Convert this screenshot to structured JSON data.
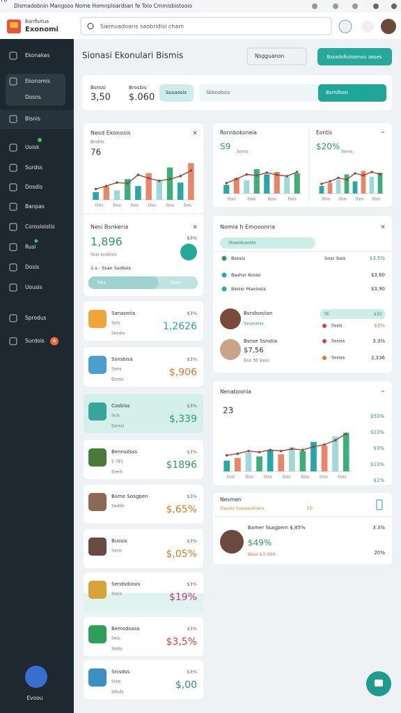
{
  "window_title": "Dismadobnin Mangsoo Nome Homnploardsan fe Tolo Cmmisbistooio",
  "header": {
    "logo_top": "Eonfisitus",
    "logo_bottom": "Exonomi",
    "search": "Siemuadoaris saobridisi cham"
  },
  "sidebar": {
    "items": [
      "Ekonakes",
      "Ekonomis",
      "Dosns",
      "Bisnis",
      "Uoisk",
      "Surdss",
      "Dosdis",
      "Banpas",
      "Corosioistis",
      "Rusi",
      "Dosis",
      "Uousis",
      "Sprodus",
      "Surdois"
    ],
    "badge": "6",
    "footer": "Evoou"
  },
  "page": {
    "title": "Sionasi Ekonulari Bismis",
    "dropdown": "Nsgguanon",
    "button": "Bsssdsfiutoonou asses"
  },
  "filters": {
    "stat1_label": "Bsnssi",
    "stat1_value": "3,50",
    "stat2_label": "Brosbis",
    "stat2_value": "$.060",
    "pill": "Susaosis",
    "input": "Sbkosbsis",
    "select": "Bsmiltosi"
  },
  "bar_colors": [
    "#2aa6a6",
    "#e8866a",
    "#9fd9d6",
    "#3fae7a"
  ],
  "line_color": "#8b4a3c",
  "charts": [
    {
      "title": "Nesd Ekonosis",
      "value": "76",
      "sub": "Bosbis",
      "labels": [
        "Dsis",
        "Dsis",
        "Dsis",
        "Dsis",
        "Dsis",
        "Dsis"
      ],
      "ylim": [
        0,
        100
      ],
      "bars": [
        18,
        30,
        22,
        48,
        32,
        62,
        45,
        75,
        40,
        85
      ],
      "line": [
        25,
        32,
        40,
        38,
        58,
        50,
        44,
        48,
        55,
        68
      ]
    },
    {
      "title": "Ronnbokoneia",
      "value": "S9",
      "sub": "Sonis",
      "labels": [
        "Dsis",
        "Dsis",
        "Dsis",
        "Dsis"
      ],
      "ylim": [
        0,
        100
      ],
      "bars": [
        25,
        45,
        38,
        70,
        55,
        62,
        48,
        58
      ],
      "line": [
        30,
        42,
        55,
        52,
        60,
        54,
        50,
        62
      ]
    },
    {
      "title": "Eontis",
      "value": "$20%",
      "sub": "Sonis",
      "labels": [
        "Dsis",
        "Dsis",
        "Dsis",
        "Dsis"
      ],
      "ylim": [
        0,
        100
      ],
      "bars": [
        22,
        30,
        40,
        55,
        35,
        65,
        48,
        60
      ],
      "line": [
        28,
        35,
        45,
        40,
        58,
        52,
        62,
        55
      ]
    },
    {
      "title": "Nenaboonia",
      "value": "23",
      "sub": null,
      "labels": [
        "Dsis",
        "Dsis",
        "Dsis",
        "Dsis",
        "Dsis",
        "Dsis",
        "Dsis"
      ],
      "ylim": [
        0,
        100
      ],
      "bars": [
        20,
        25,
        35,
        28,
        40,
        32,
        45,
        38,
        55,
        48,
        65,
        72
      ],
      "line": [
        30,
        33,
        38,
        36,
        40,
        38,
        42,
        40,
        46,
        50,
        58,
        70
      ],
      "axis_labels": [
        "$53%",
        "$13%",
        "$3%",
        "$13%",
        "$1%"
      ]
    }
  ],
  "summary": {
    "title": "Nesi Bsnkeria",
    "value": "1,896",
    "pct": "$3%",
    "sub": "Sosi sosbisis",
    "note": "1-s · Ssan Ssobsis",
    "bar_left": "Ssis",
    "bar_right": "Sasis"
  },
  "items": [
    {
      "name": "Sanaooiia",
      "sub1": "Sois",
      "sub2": "Sesdis",
      "pct": "$3%",
      "value": "1,2626"
    },
    {
      "name": "Ssnsbisa",
      "sub1": "Sans",
      "sub2": "Basss",
      "pct": "$3%",
      "value": "$,906"
    },
    {
      "name": "Cosbiss",
      "sub1": "Scis",
      "sub2": "Ssosis",
      "pct": "$3%",
      "value": "$,339"
    },
    {
      "name": "Bennsdsss",
      "sub1": "S 781",
      "sub2": "Baeis",
      "pct": "$3%",
      "value": "$1896"
    },
    {
      "name": "Bame Sosgpen",
      "sub1": "Soddo",
      "sub2": "",
      "pct": "$3%",
      "value": "$,65%"
    },
    {
      "name": "Buosis",
      "sub1": "Sasis",
      "sub2": "",
      "pct": "$3%",
      "value": "$,05%"
    },
    {
      "name": "Sendsdiosis",
      "sub1": "Sssis",
      "sub2": "",
      "pct": "$3%",
      "value": "$19%"
    },
    {
      "name": "Bemodsasa",
      "sub1": "Sels",
      "sub2": "Ssdis",
      "pct": "$3%",
      "value": "$3,5%"
    },
    {
      "name": "Snisdss",
      "sub1": "Sisis",
      "sub2": "Sdsds",
      "pct": "$3%",
      "value": "$,00"
    }
  ],
  "news": {
    "title": "Nomia h Emooonria",
    "pill": "Sloaodusosts",
    "rows": [
      {
        "label": "Bsosis",
        "mid": "Sosc bais",
        "value": "$3.5%"
      },
      {
        "label": "Bashsr Kosisi",
        "value": "$3,60"
      },
      {
        "label": "Bsoisr Maniosis",
        "value": "$3,90"
      }
    ],
    "people": [
      {
        "name": "Bsndsosiian",
        "sub": "Sssasaiss",
        "pill_left": "Sli",
        "pill_right": "$35",
        "row_label": "Sosis",
        "row_value": "$3%"
      },
      {
        "name": "Bsnse Ssnstia",
        "value": "$7,56",
        "sub": "Bsa 30 $sas",
        "row1_label": "Sosisa",
        "row1_value": "3.3%",
        "row2_label": "Sosisa",
        "row2_value": "2,336"
      }
    ]
  },
  "bottom": {
    "title": "Nesmen",
    "sub": "Dsasis Soeasotiosis",
    "count": "10",
    "name": "Bamer Ssagpern $,85%",
    "value": "$49%",
    "note": "Bsss $3.380",
    "right1": "3.3%",
    "right2": "20%"
  }
}
